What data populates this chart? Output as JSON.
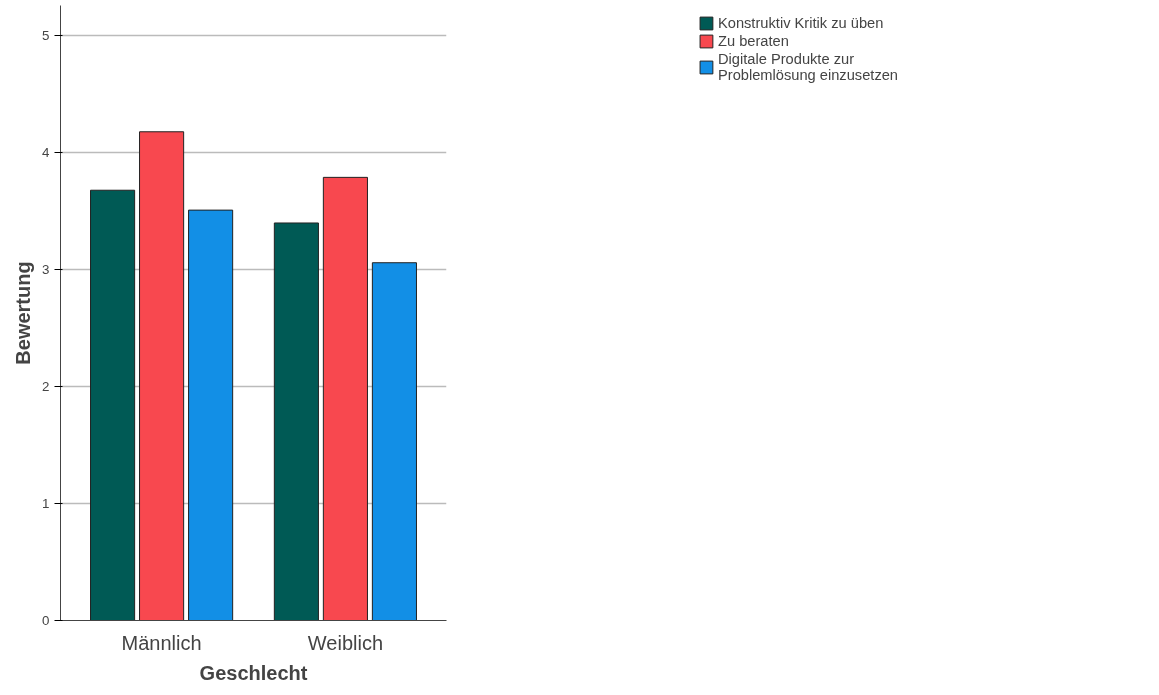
{
  "chart_data": {
    "type": "bar",
    "xlabel": "Geschlecht",
    "ylabel": "Bewertung",
    "categories": [
      "Männlich",
      "Weiblich"
    ],
    "series": [
      {
        "name": "Konstruktiv Kritik zu üben",
        "color": "#005a55",
        "values": [
          3.68,
          3.4
        ]
      },
      {
        "name": "Zu beraten",
        "color": "#f8484f",
        "values": [
          4.18,
          3.79
        ]
      },
      {
        "name": "Digitale Produkte zur Problemlösung einzusetzen",
        "color": "#128fe6",
        "values": [
          3.51,
          3.06
        ]
      }
    ],
    "ylim": [
      0,
      5.26
    ],
    "yticks": [
      0,
      1,
      2,
      3,
      4,
      5
    ],
    "grid": "y",
    "legend": "top right"
  }
}
